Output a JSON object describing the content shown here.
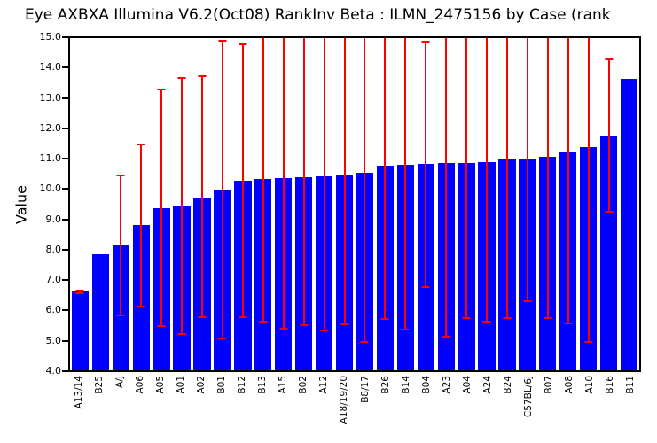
{
  "title": "Eye AXBXA Illumina V6.2(Oct08) RankInv Beta : ILMN_2475156 by Case (rank",
  "colors": {
    "bar": "#0000ff",
    "error": "#ff0000",
    "axis": "#000000",
    "background": "#ffffff"
  },
  "chart_data": {
    "type": "bar",
    "title": "Eye AXBXA Illumina V6.2(Oct08) RankInv Beta : ILMN_2475156 by Case (rank",
    "xlabel": "",
    "ylabel": "Value",
    "ylim": [
      4.0,
      15.0
    ],
    "ytick_labels": [
      "15.0",
      "14.0",
      "13.0",
      "12.0",
      "11.0",
      "10.0",
      "9.0",
      "8.0",
      "7.0",
      "6.0",
      "5.0",
      "4.0"
    ],
    "grid": false,
    "legend": "none",
    "error_bars": "symmetric, red, clipped at y=15.0",
    "categories": [
      "A13/14",
      "B25",
      "A/J",
      "A06",
      "A05",
      "A01",
      "A02",
      "B01",
      "B12",
      "B13",
      "A15",
      "B02",
      "A12",
      "A18/19/20",
      "B8/17",
      "B26",
      "B14",
      "B04",
      "A23",
      "A04",
      "A24",
      "B24",
      "C57BL/6J",
      "B07",
      "A08",
      "A10",
      "B16",
      "B11"
    ],
    "values": [
      6.6,
      7.83,
      8.15,
      8.8,
      9.37,
      9.45,
      9.72,
      9.97,
      10.28,
      10.33,
      10.37,
      10.39,
      10.43,
      10.47,
      10.53,
      10.78,
      10.8,
      10.83,
      10.85,
      10.86,
      10.88,
      10.97,
      10.98,
      11.08,
      11.25,
      11.4,
      11.77,
      13.65
    ],
    "error_low": [
      6.53,
      null,
      5.78,
      6.07,
      5.45,
      5.17,
      5.72,
      5.04,
      5.74,
      5.59,
      5.35,
      5.48,
      5.29,
      5.5,
      4.91,
      5.66,
      5.33,
      6.74,
      5.09,
      5.7,
      5.57,
      5.7,
      6.26,
      5.69,
      5.54,
      4.92,
      9.21,
      null
    ],
    "error_high": [
      6.68,
      null,
      10.47,
      11.51,
      13.33,
      13.7,
      13.77,
      14.95,
      14.83,
      15.07,
      15.39,
      15.3,
      15.57,
      15.44,
      16.15,
      15.9,
      16.27,
      14.92,
      16.61,
      16.02,
      16.19,
      16.24,
      15.7,
      16.47,
      16.96,
      17.88,
      14.33,
      null
    ]
  }
}
